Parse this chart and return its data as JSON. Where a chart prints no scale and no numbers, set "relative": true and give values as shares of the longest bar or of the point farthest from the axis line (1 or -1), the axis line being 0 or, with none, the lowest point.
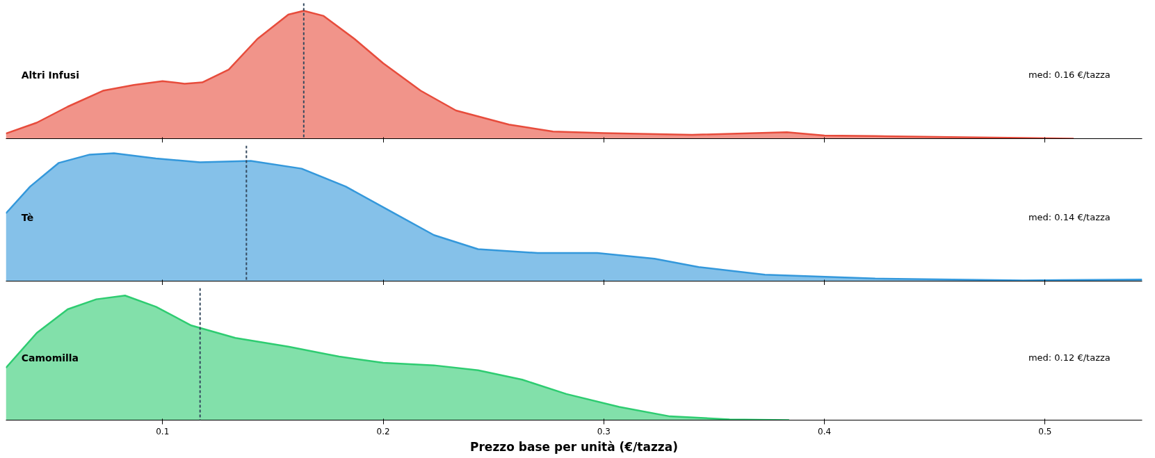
{
  "chart_data": [
    {
      "type": "area",
      "relative": true,
      "x": [
        0.029,
        0.043,
        0.057,
        0.073,
        0.087,
        0.1,
        0.11,
        0.118,
        0.13,
        0.143,
        0.157,
        0.164,
        0.173,
        0.187,
        0.2,
        0.217,
        0.233,
        0.257,
        0.277,
        0.3,
        0.34,
        0.383,
        0.4,
        0.423,
        0.457,
        0.49,
        0.513
      ],
      "series": [
        {
          "name": "Altri Infusi",
          "color": "#e74c3c",
          "values": [
            0.04,
            0.125,
            0.25,
            0.375,
            0.42,
            0.45,
            0.43,
            0.44,
            0.54,
            0.78,
            0.97,
            1.0,
            0.96,
            0.78,
            0.59,
            0.375,
            0.22,
            0.11,
            0.056,
            0.044,
            0.03,
            0.05,
            0.025,
            0.02,
            0.012,
            0.006,
            0.0
          ]
        }
      ],
      "xlim": [
        0.029,
        0.544
      ],
      "xticks": [
        0.1,
        0.2,
        0.3,
        0.4,
        0.5
      ],
      "tick_labels": false,
      "legend": false,
      "grid": false,
      "ref_lines": [
        {
          "axis": "x",
          "value": 0.164,
          "color": "#34495e",
          "line_style": "dashed"
        }
      ],
      "annotations": [
        "med: 0.16 €/tazza"
      ]
    },
    {
      "type": "area",
      "relative": true,
      "x": [
        0.029,
        0.04,
        0.053,
        0.067,
        0.078,
        0.097,
        0.117,
        0.14,
        0.163,
        0.183,
        0.203,
        0.223,
        0.243,
        0.27,
        0.297,
        0.323,
        0.343,
        0.373,
        0.423,
        0.49,
        0.544
      ],
      "series": [
        {
          "name": "Tè",
          "color": "#3498db",
          "values": [
            0.53,
            0.74,
            0.925,
            0.99,
            1.0,
            0.96,
            0.93,
            0.94,
            0.88,
            0.74,
            0.55,
            0.36,
            0.25,
            0.22,
            0.22,
            0.175,
            0.11,
            0.05,
            0.02,
            0.006,
            0.0125
          ]
        }
      ],
      "xlim": [
        0.029,
        0.544
      ],
      "xticks": [
        0.1,
        0.2,
        0.3,
        0.4,
        0.5
      ],
      "tick_labels": false,
      "legend": false,
      "grid": false,
      "ref_lines": [
        {
          "axis": "x",
          "value": 0.138,
          "color": "#34495e",
          "line_style": "dashed"
        }
      ],
      "annotations": [
        "med: 0.14 €/tazza"
      ]
    },
    {
      "type": "area",
      "relative": true,
      "x": [
        0.029,
        0.043,
        0.057,
        0.07,
        0.083,
        0.097,
        0.113,
        0.133,
        0.157,
        0.18,
        0.2,
        0.223,
        0.243,
        0.263,
        0.283,
        0.307,
        0.33,
        0.357,
        0.384
      ],
      "series": [
        {
          "name": "Camomilla",
          "color": "#2ecc71",
          "values": [
            0.42,
            0.7,
            0.89,
            0.97,
            1.0,
            0.91,
            0.76,
            0.66,
            0.59,
            0.51,
            0.46,
            0.44,
            0.4,
            0.325,
            0.21,
            0.106,
            0.03,
            0.006,
            0.0
          ]
        }
      ],
      "xlim": [
        0.029,
        0.544
      ],
      "xticks": [
        0.1,
        0.2,
        0.3,
        0.4,
        0.5
      ],
      "tick_labels": "x",
      "legend": false,
      "grid": false,
      "xlabel": "Prezzo base per unità (€/tazza)",
      "ref_lines": [
        {
          "axis": "x",
          "value": 0.117,
          "color": "#34495e",
          "line_style": "dashed"
        }
      ],
      "annotations": [
        "med: 0.12 €/tazza"
      ]
    }
  ]
}
